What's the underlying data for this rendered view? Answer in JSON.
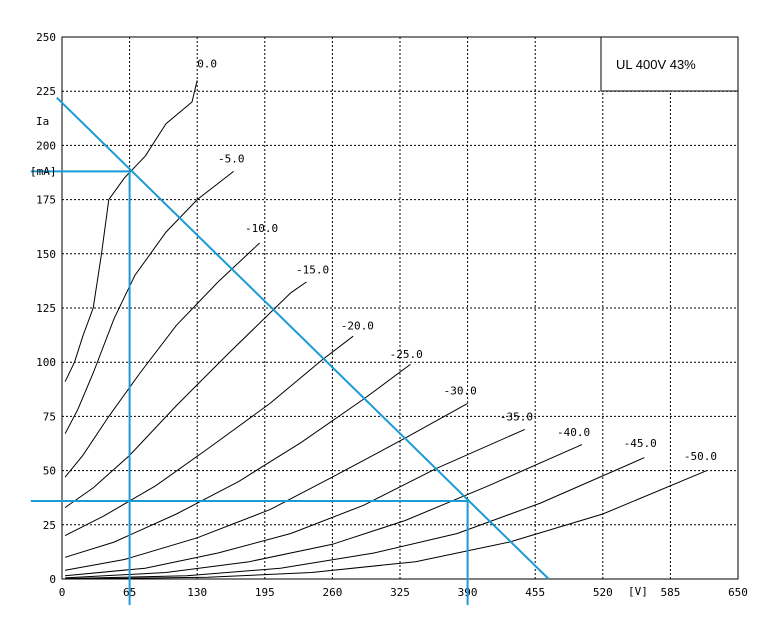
{
  "chart_data": {
    "type": "line",
    "legend": "UL 400V 43%",
    "legend_placement": "top-right",
    "x_unit_label": "[V]",
    "y_label": "Ia",
    "y_unit_label": "[mA]",
    "xlim": [
      0,
      650
    ],
    "ylim": [
      0,
      250
    ],
    "x_ticks": [
      0,
      65,
      130,
      195,
      260,
      325,
      390,
      455,
      520,
      585,
      650
    ],
    "x_tick_labels": [
      "0",
      "65",
      "130",
      "195",
      "260",
      "325",
      "390",
      "455",
      "520",
      "585",
      "650"
    ],
    "y_ticks": [
      0,
      25,
      50,
      75,
      100,
      125,
      150,
      175,
      200,
      225,
      250
    ],
    "grid": true,
    "curve_color": "#000000",
    "overlay_color": "#1a9ad6",
    "series": [
      {
        "name": "0.0",
        "points": [
          [
            3,
            91
          ],
          [
            12,
            100
          ],
          [
            20,
            112
          ],
          [
            30,
            125
          ],
          [
            38,
            150
          ],
          [
            45,
            175
          ],
          [
            60,
            185
          ],
          [
            80,
            195
          ],
          [
            100,
            210
          ],
          [
            125,
            220
          ],
          [
            130,
            230
          ]
        ],
        "label_at": [
          130,
          236
        ]
      },
      {
        "name": "-5.0",
        "points": [
          [
            3,
            67
          ],
          [
            15,
            78
          ],
          [
            30,
            95
          ],
          [
            50,
            120
          ],
          [
            70,
            140
          ],
          [
            100,
            160
          ],
          [
            130,
            175
          ],
          [
            165,
            188
          ]
        ],
        "label_at": [
          150,
          192
        ]
      },
      {
        "name": "-10.0",
        "points": [
          [
            3,
            47
          ],
          [
            20,
            57
          ],
          [
            45,
            75
          ],
          [
            75,
            95
          ],
          [
            110,
            117
          ],
          [
            150,
            137
          ],
          [
            190,
            155
          ]
        ],
        "label_at": [
          176,
          160
        ]
      },
      {
        "name": "-15.0",
        "points": [
          [
            3,
            33
          ],
          [
            30,
            42
          ],
          [
            65,
            57
          ],
          [
            110,
            80
          ],
          [
            160,
            104
          ],
          [
            220,
            132
          ],
          [
            235,
            137
          ]
        ],
        "label_at": [
          225,
          141
        ]
      },
      {
        "name": "-20.0",
        "points": [
          [
            3,
            20
          ],
          [
            40,
            29
          ],
          [
            90,
            43
          ],
          [
            140,
            60
          ],
          [
            200,
            81
          ],
          [
            250,
            101
          ],
          [
            280,
            112
          ]
        ],
        "label_at": [
          268,
          115
        ]
      },
      {
        "name": "-25.0",
        "points": [
          [
            3,
            10
          ],
          [
            50,
            17
          ],
          [
            110,
            30
          ],
          [
            170,
            45
          ],
          [
            230,
            63
          ],
          [
            290,
            83
          ],
          [
            335,
            99
          ]
        ],
        "label_at": [
          315,
          102
        ]
      },
      {
        "name": "-30.0",
        "points": [
          [
            3,
            4
          ],
          [
            60,
            9
          ],
          [
            130,
            19
          ],
          [
            200,
            32
          ],
          [
            260,
            47
          ],
          [
            330,
            65
          ],
          [
            390,
            81
          ]
        ],
        "label_at": [
          367,
          85
        ]
      },
      {
        "name": "-35.0",
        "points": [
          [
            3,
            1.5
          ],
          [
            80,
            5
          ],
          [
            150,
            12
          ],
          [
            220,
            21
          ],
          [
            290,
            34
          ],
          [
            360,
            51
          ],
          [
            445,
            69
          ]
        ],
        "label_at": [
          421,
          73
        ]
      },
      {
        "name": "-40.0",
        "points": [
          [
            3,
            0.5
          ],
          [
            100,
            3
          ],
          [
            180,
            8
          ],
          [
            260,
            16
          ],
          [
            330,
            27
          ],
          [
            410,
            43
          ],
          [
            500,
            62
          ]
        ],
        "label_at": [
          476,
          66
        ]
      },
      {
        "name": "-45.0",
        "points": [
          [
            3,
            0.2
          ],
          [
            120,
            1.5
          ],
          [
            210,
            5
          ],
          [
            300,
            12
          ],
          [
            380,
            21
          ],
          [
            460,
            35
          ],
          [
            560,
            56
          ]
        ],
        "label_at": [
          540,
          61
        ]
      },
      {
        "name": "-50.0",
        "points": [
          [
            3,
            0
          ],
          [
            140,
            0.8
          ],
          [
            240,
            3
          ],
          [
            340,
            8
          ],
          [
            430,
            17
          ],
          [
            520,
            30
          ],
          [
            620,
            50
          ]
        ],
        "label_at": [
          598,
          55
        ]
      }
    ],
    "load_line": [
      [
        -5,
        222
      ],
      [
        468,
        0
      ]
    ],
    "marker_lines": [
      [
        [
          -30,
          188
        ],
        [
          65,
          188
        ]
      ],
      [
        [
          65,
          188
        ],
        [
          65,
          -12
        ]
      ],
      [
        [
          -30,
          36
        ],
        [
          390,
          36
        ]
      ],
      [
        [
          390,
          36
        ],
        [
          390,
          -12
        ]
      ]
    ]
  }
}
